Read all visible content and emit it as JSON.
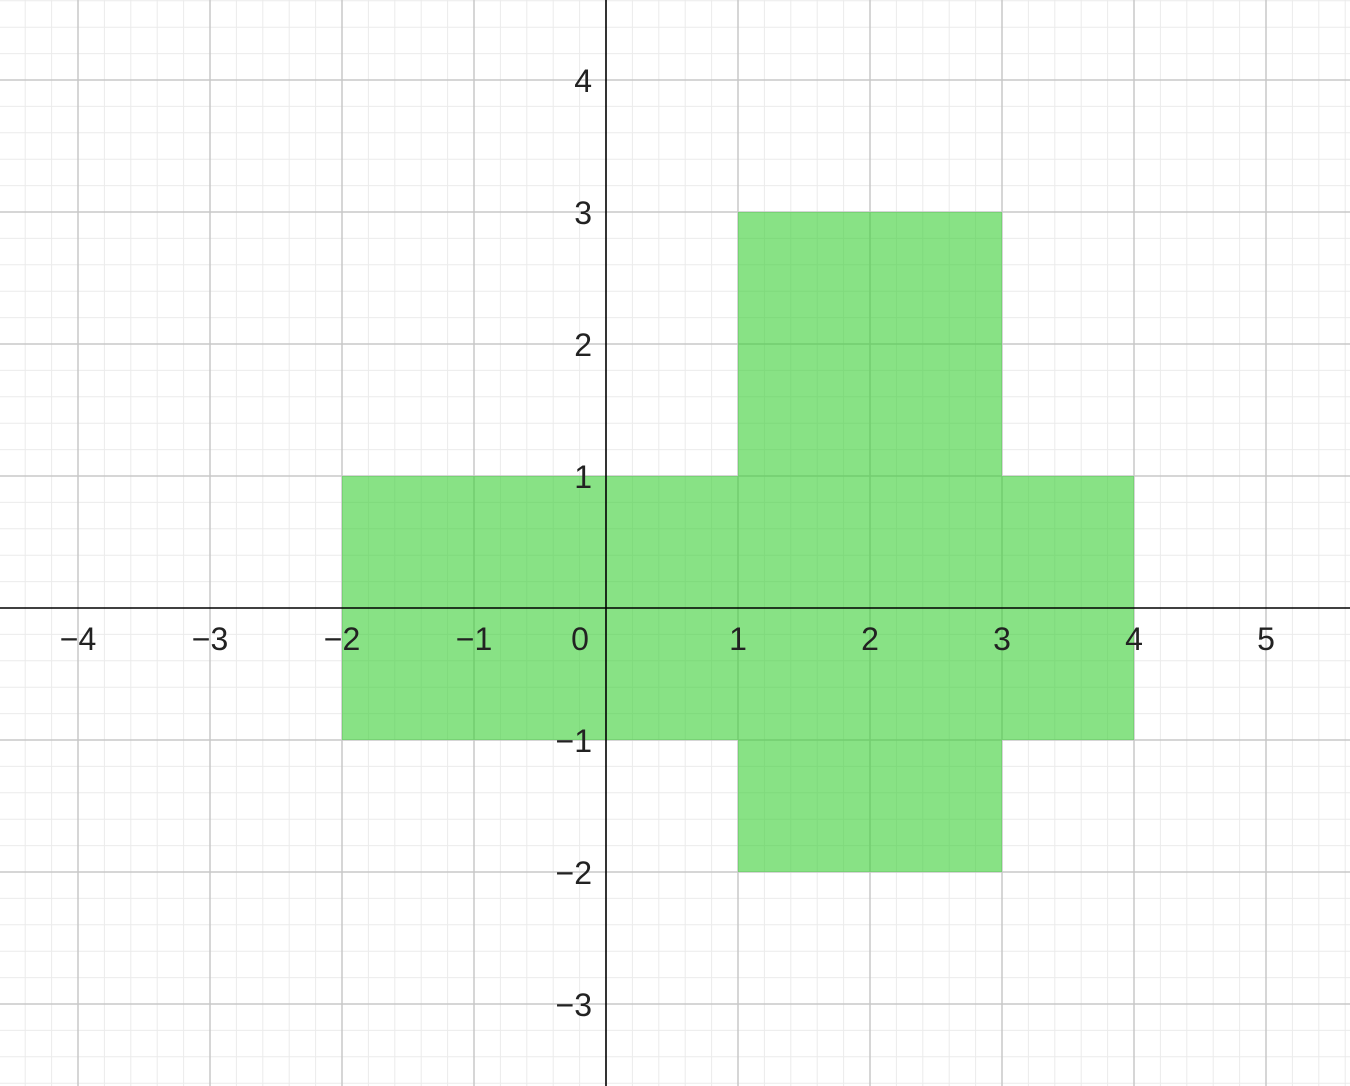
{
  "chart_data": {
    "type": "area",
    "title": "",
    "xlabel": "",
    "ylabel": "",
    "xlim": [
      -4.6,
      5.6
    ],
    "ylim": [
      -3.6,
      4.6
    ],
    "grid": {
      "major": true,
      "minor": true,
      "minor_per_major": 5
    },
    "x_ticks": [
      {
        "value": -4,
        "label": "−4"
      },
      {
        "value": -3,
        "label": "−3"
      },
      {
        "value": -2,
        "label": "−2"
      },
      {
        "value": -1,
        "label": "−1"
      },
      {
        "value": 0,
        "label": "0"
      },
      {
        "value": 1,
        "label": "1"
      },
      {
        "value": 2,
        "label": "2"
      },
      {
        "value": 3,
        "label": "3"
      },
      {
        "value": 4,
        "label": "4"
      },
      {
        "value": 5,
        "label": "5"
      }
    ],
    "y_ticks": [
      {
        "value": -3,
        "label": "−3"
      },
      {
        "value": -2,
        "label": "−2"
      },
      {
        "value": -1,
        "label": "−1"
      },
      {
        "value": 1,
        "label": "1"
      },
      {
        "value": 2,
        "label": "2"
      },
      {
        "value": 3,
        "label": "3"
      },
      {
        "value": 4,
        "label": "4"
      }
    ],
    "regions": [
      {
        "x": [
          -2,
          4
        ],
        "y": [
          -1,
          1
        ],
        "color": "#3fd13a"
      },
      {
        "x": [
          1,
          3
        ],
        "y": [
          1,
          3
        ],
        "color": "#3fd13a"
      },
      {
        "x": [
          1,
          3
        ],
        "y": [
          -2,
          -1
        ],
        "color": "#3fd13a"
      }
    ],
    "colors": {
      "axis": "#000000",
      "major_grid": "#c8c8c8",
      "minor_grid": "#ebebeb",
      "fill": "#3fd13a",
      "fill_opacity": 0.62
    }
  }
}
